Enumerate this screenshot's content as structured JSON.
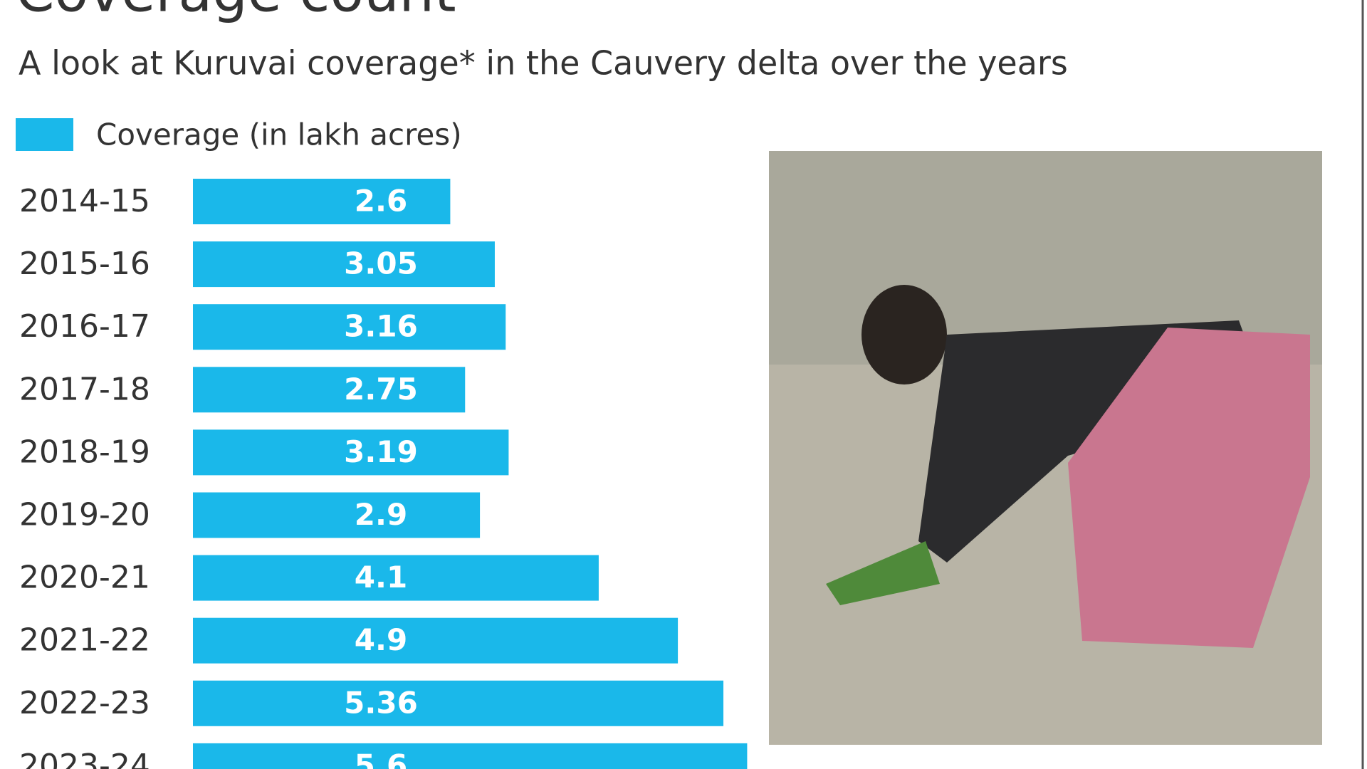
{
  "chart_data": {
    "type": "bar",
    "orientation": "horizontal",
    "title": "Coverage count",
    "subtitle": "A look at Kuruvai coverage* in the Cauvery delta over the years",
    "categories": [
      "2014-15",
      "2015-16",
      "2016-17",
      "2017-18",
      "2018-19",
      "2019-20",
      "2020-21",
      "2021-22",
      "2022-23",
      "2023-24"
    ],
    "series": [
      {
        "name": "Coverage (in lakh acres)",
        "color": "#1ab8ea",
        "values": [
          2.6,
          3.05,
          3.16,
          2.75,
          3.19,
          2.9,
          4.1,
          4.9,
          5.36,
          5.6
        ]
      }
    ]
  }
}
